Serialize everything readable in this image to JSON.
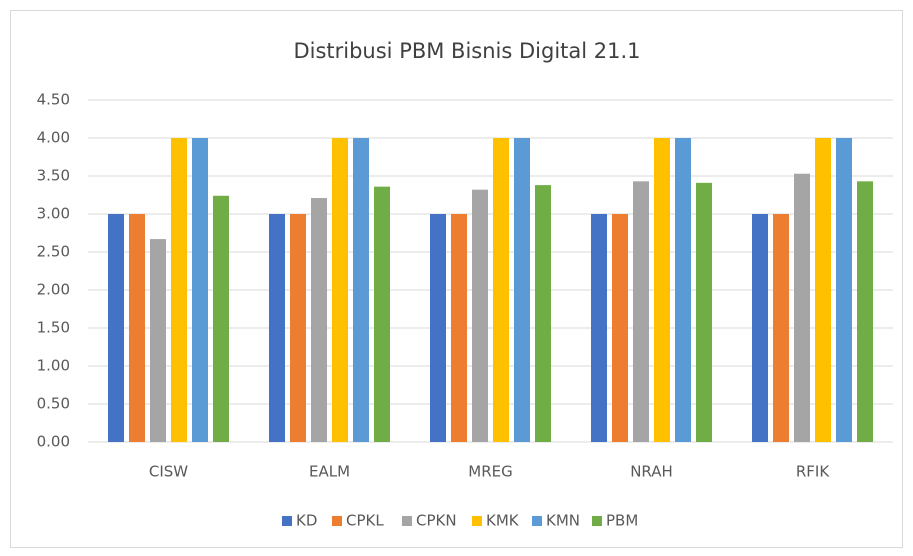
{
  "chart_data": {
    "type": "bar",
    "title": "Distribusi PBM Bisnis Digital 21.1",
    "categories": [
      "CISW",
      "EALM",
      "MREG",
      "NRAH",
      "RFIK"
    ],
    "series": [
      {
        "name": "KD",
        "color": "#4472c4",
        "values": [
          3,
          3,
          3,
          3,
          3
        ]
      },
      {
        "name": "CPKL",
        "color": "#ed7d31",
        "values": [
          3,
          3,
          3,
          3,
          3
        ]
      },
      {
        "name": "CPKN",
        "color": "#a5a5a5",
        "values": [
          2.67,
          3.21,
          3.32,
          3.43,
          3.53
        ]
      },
      {
        "name": "KMK",
        "color": "#ffc000",
        "values": [
          4,
          4,
          4,
          4,
          4
        ]
      },
      {
        "name": "KMN",
        "color": "#5b9bd5",
        "values": [
          4,
          4,
          4,
          4,
          4
        ]
      },
      {
        "name": "PBM",
        "color": "#70ad47",
        "values": [
          3.24,
          3.36,
          3.38,
          3.41,
          3.43
        ]
      }
    ],
    "ylim": [
      0,
      4.5
    ],
    "yticks": [
      {
        "value": 0,
        "label": "0.00"
      },
      {
        "value": 0.5,
        "label": "0.50"
      },
      {
        "value": 1,
        "label": "1.00"
      },
      {
        "value": 1.5,
        "label": "1.50"
      },
      {
        "value": 2,
        "label": "2.00"
      },
      {
        "value": 2.5,
        "label": "2.50"
      },
      {
        "value": 3,
        "label": "3.00"
      },
      {
        "value": 3.5,
        "label": "3.50"
      },
      {
        "value": 4,
        "label": "4.00"
      },
      {
        "value": 4.5,
        "label": "4.50"
      }
    ],
    "grid": true,
    "legend": "bottom"
  }
}
